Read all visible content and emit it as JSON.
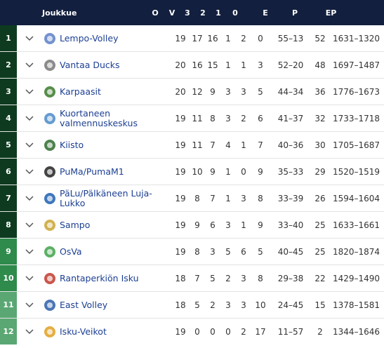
{
  "header": {
    "team": "Joukkue",
    "cols": [
      "O",
      "V",
      "3",
      "2",
      "1",
      "0",
      "E",
      "P",
      "EP"
    ]
  },
  "colors": {
    "header_bg": "#121f3e",
    "pos_dark": "#0e3b1f",
    "pos_green": "#2e8b4c",
    "pos_light": "#5aa773",
    "team_link": "#1c3f93"
  },
  "rows": [
    {
      "pos": "1",
      "team": "Lempo-Volley",
      "O": "19",
      "V": "17",
      "3": "16",
      "2": "1",
      "1": "2",
      "0": "0",
      "E": "55–13",
      "P": "52",
      "EP": "1631–1320",
      "band": "dark",
      "logo": "lempo-logo-icon",
      "logo_color": "#5b7fc7"
    },
    {
      "pos": "2",
      "team": "Vantaa Ducks",
      "O": "20",
      "V": "16",
      "3": "15",
      "2": "1",
      "1": "1",
      "0": "3",
      "E": "52–20",
      "P": "48",
      "EP": "1697–1487",
      "band": "dark",
      "logo": "duck-logo-icon",
      "logo_color": "#777777"
    },
    {
      "pos": "3",
      "team": "Karpaasit",
      "O": "20",
      "V": "12",
      "3": "9",
      "2": "3",
      "1": "3",
      "0": "5",
      "E": "44–34",
      "P": "36",
      "EP": "1776–1673",
      "band": "dark",
      "logo": "karpaasit-logo-icon",
      "logo_color": "#3a7a2a"
    },
    {
      "pos": "4",
      "team": "Kuortaneen valmennuskeskus",
      "O": "19",
      "V": "11",
      "3": "8",
      "2": "3",
      "1": "2",
      "0": "6",
      "E": "41–37",
      "P": "32",
      "EP": "1733–1718",
      "band": "dark",
      "logo": "kuortane-logo-icon",
      "logo_color": "#4a8ac9"
    },
    {
      "pos": "5",
      "team": "Kiisto",
      "O": "19",
      "V": "11",
      "3": "7",
      "2": "4",
      "1": "1",
      "0": "7",
      "E": "40–36",
      "P": "30",
      "EP": "1705–1687",
      "band": "dark",
      "logo": "kiisto-logo-icon",
      "logo_color": "#2e6b2e"
    },
    {
      "pos": "6",
      "team": "PuMa/PumaM1",
      "O": "19",
      "V": "10",
      "3": "9",
      "2": "1",
      "1": "0",
      "0": "9",
      "E": "35–33",
      "P": "29",
      "EP": "1520–1519",
      "band": "dark",
      "logo": "puma-logo-icon",
      "logo_color": "#222222"
    },
    {
      "pos": "7",
      "team": "PäLu/Pälkäneen Luja-Lukko",
      "O": "19",
      "V": "8",
      "3": "7",
      "2": "1",
      "1": "3",
      "0": "8",
      "E": "33–39",
      "P": "26",
      "EP": "1594–1604",
      "band": "dark",
      "logo": "palu-logo-icon",
      "logo_color": "#1d5fb0"
    },
    {
      "pos": "8",
      "team": "Sampo",
      "O": "19",
      "V": "9",
      "3": "6",
      "2": "3",
      "1": "1",
      "0": "9",
      "E": "33–40",
      "P": "25",
      "EP": "1633–1661",
      "band": "dark",
      "logo": "sampo-logo-icon",
      "logo_color": "#c9a431"
    },
    {
      "pos": "9",
      "team": "OsVa",
      "O": "19",
      "V": "8",
      "3": "3",
      "2": "5",
      "1": "6",
      "0": "5",
      "E": "40–45",
      "P": "25",
      "EP": "1820–1874",
      "band": "green",
      "logo": "osva-logo-icon",
      "logo_color": "#3fa24a"
    },
    {
      "pos": "10",
      "team": "Rantaperkiön Isku",
      "O": "18",
      "V": "7",
      "3": "5",
      "2": "2",
      "1": "3",
      "0": "8",
      "E": "29–38",
      "P": "22",
      "EP": "1429–1490",
      "band": "green",
      "logo": "isku-logo-icon",
      "logo_color": "#c0392b"
    },
    {
      "pos": "11",
      "team": "East Volley",
      "O": "18",
      "V": "5",
      "3": "2",
      "2": "3",
      "1": "3",
      "0": "10",
      "E": "24–45",
      "P": "15",
      "EP": "1378–1581",
      "band": "light",
      "logo": "eastvolley-logo-icon",
      "logo_color": "#2b5ea8"
    },
    {
      "pos": "12",
      "team": "Isku-Veikot",
      "O": "19",
      "V": "0",
      "3": "0",
      "2": "0",
      "1": "2",
      "0": "17",
      "E": "11–57",
      "P": "2",
      "EP": "1344–1646",
      "band": "light",
      "logo": "iskuveikot-logo-icon",
      "logo_color": "#e0a020"
    }
  ]
}
